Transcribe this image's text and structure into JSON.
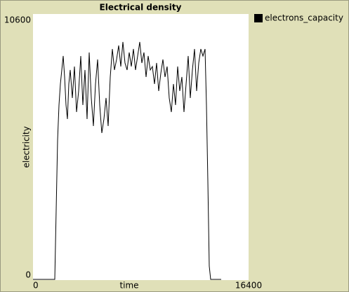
{
  "chart_data": {
    "type": "line",
    "title": "Electrical density",
    "x_label": "time",
    "y_label": "electricity",
    "xlim": [
      0,
      16400
    ],
    "ylim": [
      0,
      10600
    ],
    "xticks": [
      0,
      16400
    ],
    "yticks": [
      0,
      10600
    ],
    "grid": false,
    "legend": "right",
    "x": [
      0,
      1656,
      1763,
      1870,
      1977,
      2083,
      2190,
      2297,
      2404,
      2511,
      2618,
      2724,
      2831,
      2992,
      3152,
      3312,
      3472,
      3633,
      3793,
      3953,
      4113,
      4274,
      4434,
      4594,
      4754,
      4915,
      5075,
      5235,
      5395,
      5556,
      5716,
      5876,
      6036,
      6197,
      6357,
      6517,
      6678,
      6838,
      6998,
      7158,
      7319,
      7479,
      7639,
      7799,
      7960,
      8120,
      8280,
      8440,
      8601,
      8761,
      8921,
      9081,
      9242,
      9402,
      9562,
      9722,
      9883,
      10043,
      10203,
      10363,
      10524,
      10684,
      10844,
      11004,
      11165,
      11325,
      11485,
      11646,
      11806,
      11966,
      12126,
      12287,
      12447,
      12607,
      12767,
      12928,
      13088,
      13195,
      13302,
      13408,
      13515,
      14317
    ],
    "series": [
      {
        "name": "electrons_capacity",
        "color": "#000000",
        "values": [
          0,
          0,
          2784,
          5596,
          7002,
          7845,
          8408,
          8970,
          8127,
          7002,
          6439,
          7845,
          8408,
          7283,
          8548,
          6720,
          7564,
          8970,
          7002,
          8408,
          6439,
          9111,
          7283,
          6158,
          7845,
          8830,
          7002,
          5877,
          6439,
          7283,
          6158,
          8127,
          9251,
          8408,
          8830,
          9392,
          8548,
          9533,
          8689,
          8408,
          9111,
          8548,
          9251,
          8408,
          8970,
          9533,
          8689,
          9111,
          8127,
          8970,
          8408,
          8548,
          7845,
          8689,
          7564,
          8267,
          8830,
          8127,
          8548,
          7283,
          6720,
          7845,
          7002,
          8548,
          7564,
          8127,
          6720,
          7845,
          8970,
          7283,
          8408,
          9251,
          7564,
          8689,
          9251,
          8970,
          9251,
          7002,
          3909,
          534,
          0,
          0
        ]
      }
    ]
  }
}
